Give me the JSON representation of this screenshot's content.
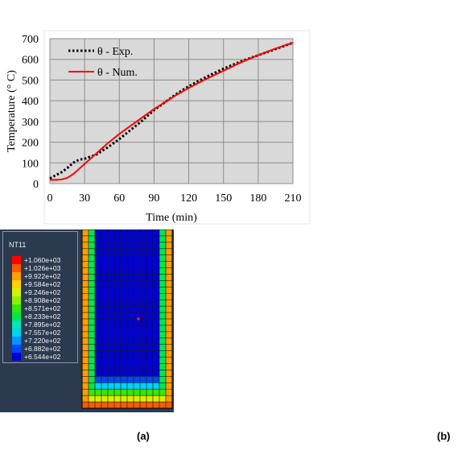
{
  "chart_data": {
    "type": "line",
    "xlabel": "Time (min)",
    "ylabel": "Temperature  (° C)",
    "xlim": [
      0,
      210
    ],
    "ylim": [
      0,
      700
    ],
    "xticks": [
      "0",
      "30",
      "60",
      "90",
      "120",
      "150",
      "180",
      "210"
    ],
    "yticks": [
      "0",
      "100",
      "200",
      "300",
      "400",
      "500",
      "600",
      "700"
    ],
    "grid": true,
    "legend_position": "top-left",
    "series": [
      {
        "name": "θ - Exp.",
        "style": "dotted",
        "color": "#000000",
        "x": [
          0,
          5,
          10,
          15,
          20,
          25,
          30,
          35,
          40,
          50,
          60,
          70,
          80,
          90,
          100,
          110,
          120,
          135,
          150,
          165,
          180,
          195,
          210
        ],
        "y": [
          25,
          40,
          55,
          75,
          100,
          115,
          120,
          130,
          140,
          175,
          215,
          260,
          305,
          355,
          395,
          435,
          470,
          515,
          555,
          590,
          620,
          650,
          680
        ]
      },
      {
        "name": "θ - Num.",
        "style": "solid",
        "color": "#ff0000",
        "x": [
          0,
          5,
          10,
          15,
          20,
          25,
          30,
          35,
          40,
          50,
          60,
          70,
          80,
          90,
          100,
          110,
          120,
          135,
          150,
          165,
          180,
          195,
          210
        ],
        "y": [
          18,
          18,
          20,
          28,
          45,
          70,
          95,
          120,
          145,
          195,
          240,
          280,
          320,
          360,
          395,
          430,
          462,
          505,
          545,
          585,
          620,
          652,
          680
        ]
      }
    ]
  },
  "contour": {
    "title": "NT11",
    "levels": [
      {
        "label": "+1.060e+03",
        "color": "#ff0000"
      },
      {
        "label": "+1.026e+03",
        "color": "#ff5a00"
      },
      {
        "label": "+9.922e+02",
        "color": "#ff9e00"
      },
      {
        "label": "+9.584e+02",
        "color": "#ffd200"
      },
      {
        "label": "+9.246e+02",
        "color": "#d8f000"
      },
      {
        "label": "+8.908e+02",
        "color": "#8ef000"
      },
      {
        "label": "+8.571e+02",
        "color": "#3ce600"
      },
      {
        "label": "+8.233e+02",
        "color": "#00e64a"
      },
      {
        "label": "+7.895e+02",
        "color": "#00e6b4"
      },
      {
        "label": "+7.557e+02",
        "color": "#00d2f0"
      },
      {
        "label": "+7.220e+02",
        "color": "#0096ff"
      },
      {
        "label": "+6.882e+02",
        "color": "#0046ff"
      },
      {
        "label": "+6.544e+02",
        "color": "#0000d2"
      }
    ]
  },
  "captions": {
    "a": "(a)",
    "b": "(b)"
  }
}
